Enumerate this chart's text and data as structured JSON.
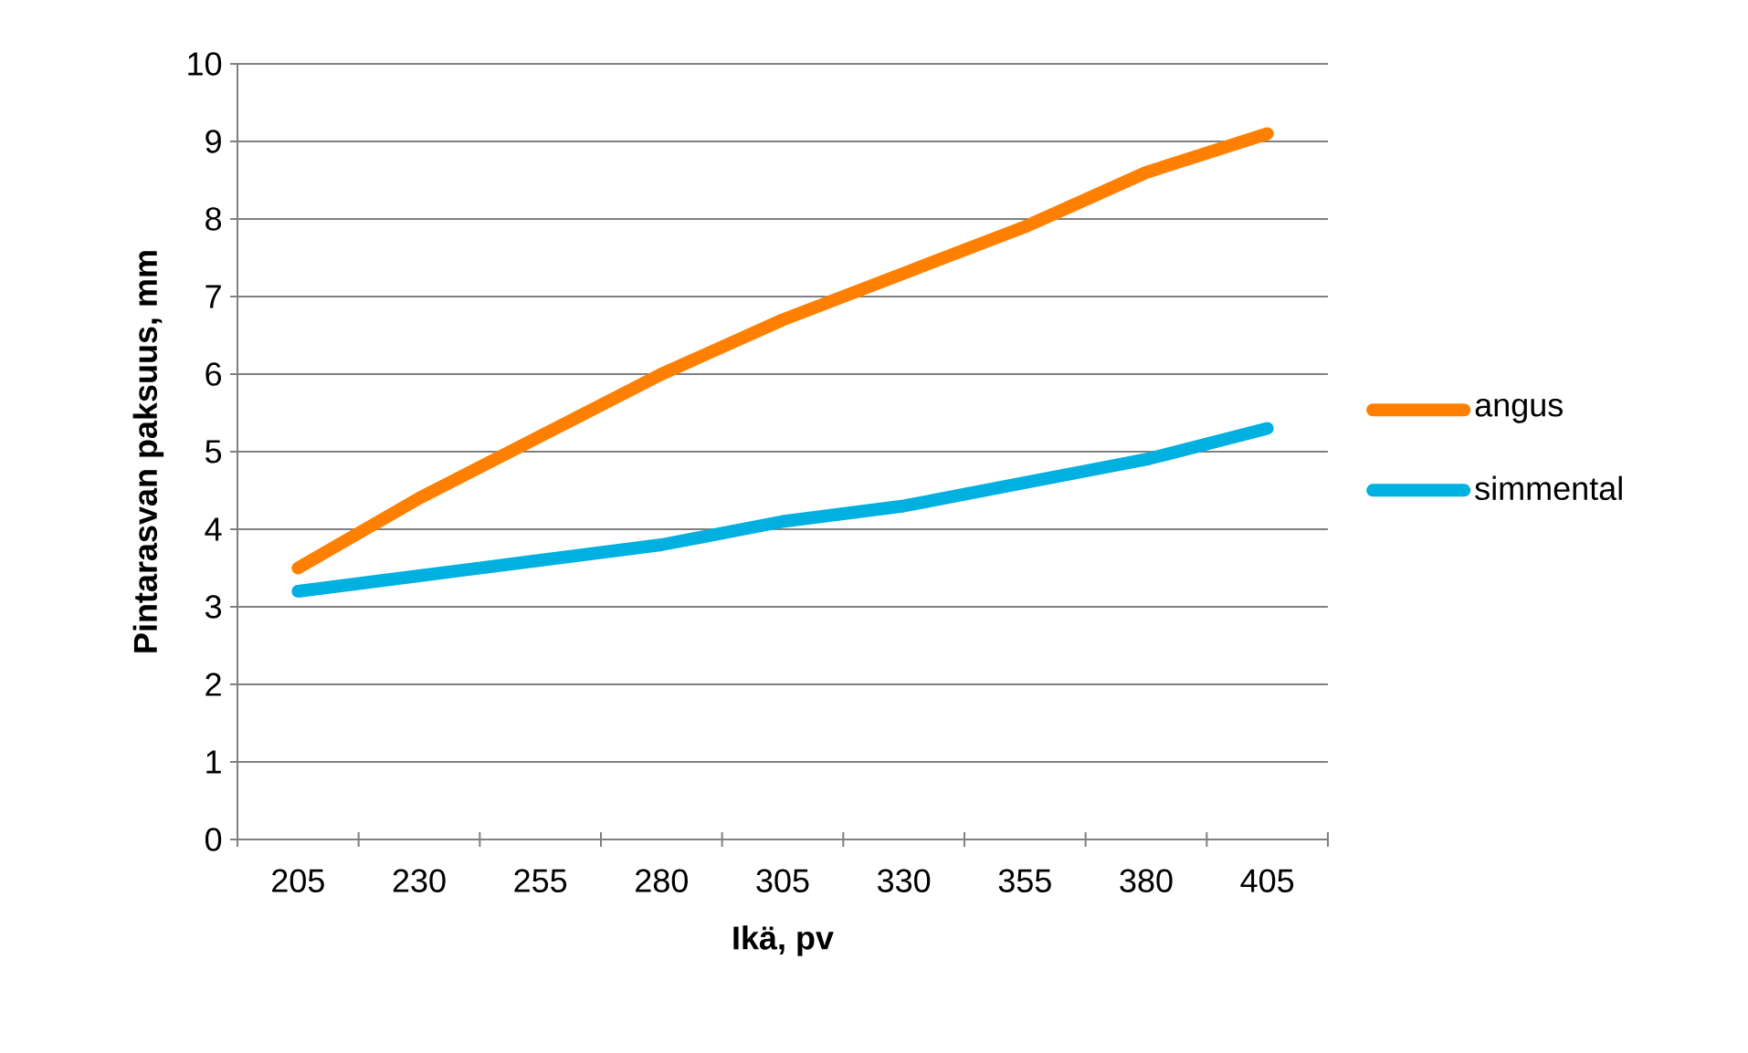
{
  "chart_data": {
    "type": "line",
    "xlabel": "Ikä, pv",
    "ylabel": "Pintarasvan paksuus, mm",
    "categories": [
      "205",
      "230",
      "255",
      "280",
      "305",
      "330",
      "355",
      "380",
      "405"
    ],
    "series": [
      {
        "name": "angus",
        "color": "#ff8000",
        "values": [
          3.5,
          4.4,
          5.2,
          6.0,
          6.7,
          7.3,
          7.9,
          8.6,
          9.1
        ]
      },
      {
        "name": "simmental",
        "color": "#00b0e0",
        "values": [
          3.2,
          3.4,
          3.6,
          3.8,
          4.1,
          4.3,
          4.6,
          4.9,
          5.3
        ]
      }
    ],
    "ylim": [
      0,
      10
    ],
    "yticks": [
      0,
      1,
      2,
      3,
      4,
      5,
      6,
      7,
      8,
      9,
      10
    ],
    "grid": "y",
    "legend": "right",
    "marker": "none",
    "line_style": "solid"
  }
}
